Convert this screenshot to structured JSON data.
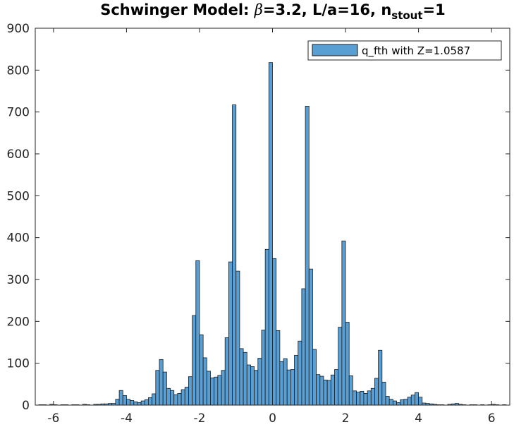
{
  "chart_data": {
    "type": "bar",
    "title": {
      "prefix": "Schwinger Model: ",
      "beta_symbol": "β",
      "rest": "=3.2, L/a=16, n",
      "subscript": "stout",
      "suffix": "=1"
    },
    "xlabel": "",
    "ylabel": "",
    "xlim": [
      -6.5,
      6.5
    ],
    "ylim": [
      0,
      900
    ],
    "xticks": [
      -6,
      -4,
      -2,
      0,
      2,
      4,
      6
    ],
    "xtick_labels": [
      "-6",
      "-4",
      "-2",
      "0",
      "2",
      "4",
      "6"
    ],
    "yticks": [
      0,
      100,
      200,
      300,
      400,
      500,
      600,
      700,
      800,
      900
    ],
    "ytick_labels": [
      "0",
      "100",
      "200",
      "300",
      "400",
      "500",
      "600",
      "700",
      "800",
      "900"
    ],
    "grid": false,
    "legend_position": "top-right",
    "bin_width": 0.1,
    "bar_color": "#5a9fd4",
    "edge_color": "#1a1a1a",
    "series": [
      {
        "name": "q_fth with Z=1.0587",
        "bins": [
          [
            -6.35,
            1
          ],
          [
            -6.25,
            1
          ],
          [
            -6.05,
            2
          ],
          [
            -5.95,
            1
          ],
          [
            -5.75,
            1
          ],
          [
            -5.65,
            1
          ],
          [
            -5.45,
            1
          ],
          [
            -5.35,
            1
          ],
          [
            -5.15,
            2
          ],
          [
            -5.05,
            1
          ],
          [
            -4.85,
            2
          ],
          [
            -4.75,
            2
          ],
          [
            -4.65,
            3
          ],
          [
            -4.55,
            3
          ],
          [
            -4.45,
            4
          ],
          [
            -4.35,
            4
          ],
          [
            -4.25,
            14
          ],
          [
            -4.15,
            35
          ],
          [
            -4.05,
            23
          ],
          [
            -3.95,
            14
          ],
          [
            -3.85,
            11
          ],
          [
            -3.75,
            8
          ],
          [
            -3.65,
            6
          ],
          [
            -3.55,
            10
          ],
          [
            -3.45,
            13
          ],
          [
            -3.35,
            18
          ],
          [
            -3.25,
            27
          ],
          [
            -3.15,
            83
          ],
          [
            -3.05,
            109
          ],
          [
            -2.95,
            79
          ],
          [
            -2.85,
            40
          ],
          [
            -2.75,
            35
          ],
          [
            -2.65,
            25
          ],
          [
            -2.55,
            28
          ],
          [
            -2.45,
            37
          ],
          [
            -2.35,
            43
          ],
          [
            -2.25,
            68
          ],
          [
            -2.15,
            214
          ],
          [
            -2.05,
            345
          ],
          [
            -1.95,
            168
          ],
          [
            -1.85,
            113
          ],
          [
            -1.75,
            81
          ],
          [
            -1.65,
            65
          ],
          [
            -1.55,
            67
          ],
          [
            -1.45,
            71
          ],
          [
            -1.35,
            83
          ],
          [
            -1.25,
            161
          ],
          [
            -1.15,
            342
          ],
          [
            -1.05,
            717
          ],
          [
            -0.95,
            320
          ],
          [
            -0.85,
            135
          ],
          [
            -0.75,
            126
          ],
          [
            -0.65,
            96
          ],
          [
            -0.55,
            92
          ],
          [
            -0.45,
            83
          ],
          [
            -0.35,
            112
          ],
          [
            -0.25,
            179
          ],
          [
            -0.15,
            372
          ],
          [
            -0.05,
            818
          ],
          [
            0.05,
            350
          ],
          [
            0.15,
            178
          ],
          [
            0.25,
            104
          ],
          [
            0.35,
            111
          ],
          [
            0.45,
            84
          ],
          [
            0.55,
            85
          ],
          [
            0.65,
            119
          ],
          [
            0.75,
            153
          ],
          [
            0.85,
            278
          ],
          [
            0.95,
            714
          ],
          [
            1.05,
            325
          ],
          [
            1.15,
            133
          ],
          [
            1.25,
            73
          ],
          [
            1.35,
            69
          ],
          [
            1.45,
            60
          ],
          [
            1.55,
            59
          ],
          [
            1.65,
            72
          ],
          [
            1.75,
            85
          ],
          [
            1.85,
            186
          ],
          [
            1.95,
            392
          ],
          [
            2.05,
            198
          ],
          [
            2.15,
            70
          ],
          [
            2.25,
            34
          ],
          [
            2.35,
            31
          ],
          [
            2.45,
            33
          ],
          [
            2.55,
            28
          ],
          [
            2.65,
            34
          ],
          [
            2.75,
            40
          ],
          [
            2.85,
            64
          ],
          [
            2.95,
            131
          ],
          [
            3.05,
            55
          ],
          [
            3.15,
            21
          ],
          [
            3.25,
            14
          ],
          [
            3.35,
            10
          ],
          [
            3.45,
            6
          ],
          [
            3.55,
            13
          ],
          [
            3.65,
            14
          ],
          [
            3.75,
            19
          ],
          [
            3.85,
            24
          ],
          [
            3.95,
            30
          ],
          [
            4.05,
            19
          ],
          [
            4.15,
            5
          ],
          [
            4.25,
            4
          ],
          [
            4.35,
            3
          ],
          [
            4.45,
            2
          ],
          [
            4.55,
            1
          ],
          [
            4.65,
            1
          ],
          [
            4.85,
            2
          ],
          [
            4.95,
            3
          ],
          [
            5.05,
            4
          ],
          [
            5.15,
            2
          ],
          [
            5.25,
            1
          ],
          [
            5.45,
            1
          ],
          [
            5.55,
            1
          ],
          [
            5.75,
            1
          ],
          [
            5.95,
            1
          ],
          [
            6.05,
            2
          ],
          [
            6.15,
            1
          ],
          [
            6.35,
            1
          ]
        ]
      }
    ]
  }
}
